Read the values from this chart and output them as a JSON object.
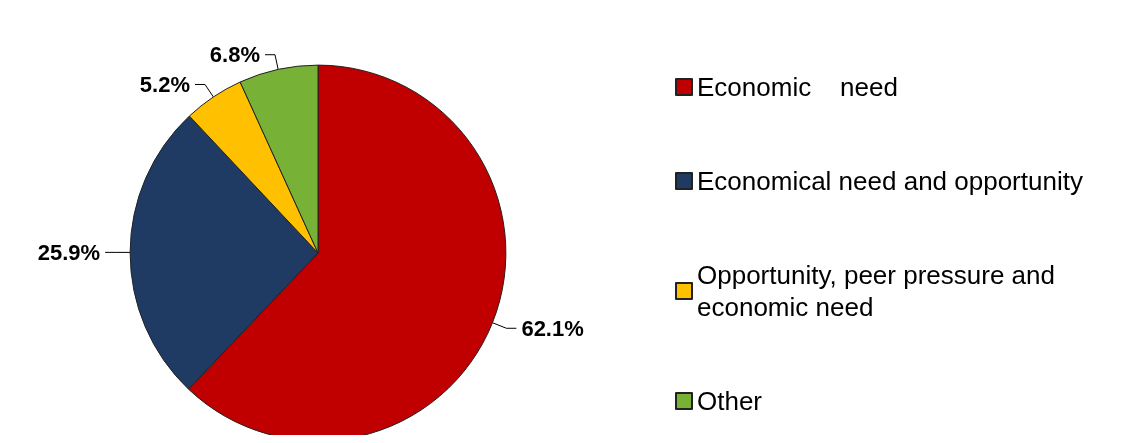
{
  "chart_data": {
    "type": "pie",
    "categories": [
      "Economic    need",
      "Economical need and opportunity",
      "Opportunity, peer pressure and economic need",
      "Other"
    ],
    "values": [
      62.1,
      25.9,
      5.2,
      6.8
    ],
    "colors": [
      "#c00000",
      "#1f3b63",
      "#ffc000",
      "#77b236"
    ],
    "value_labels": [
      "62.1%",
      "25.9%",
      "5.2%",
      "6.8%"
    ],
    "legend": "right"
  }
}
